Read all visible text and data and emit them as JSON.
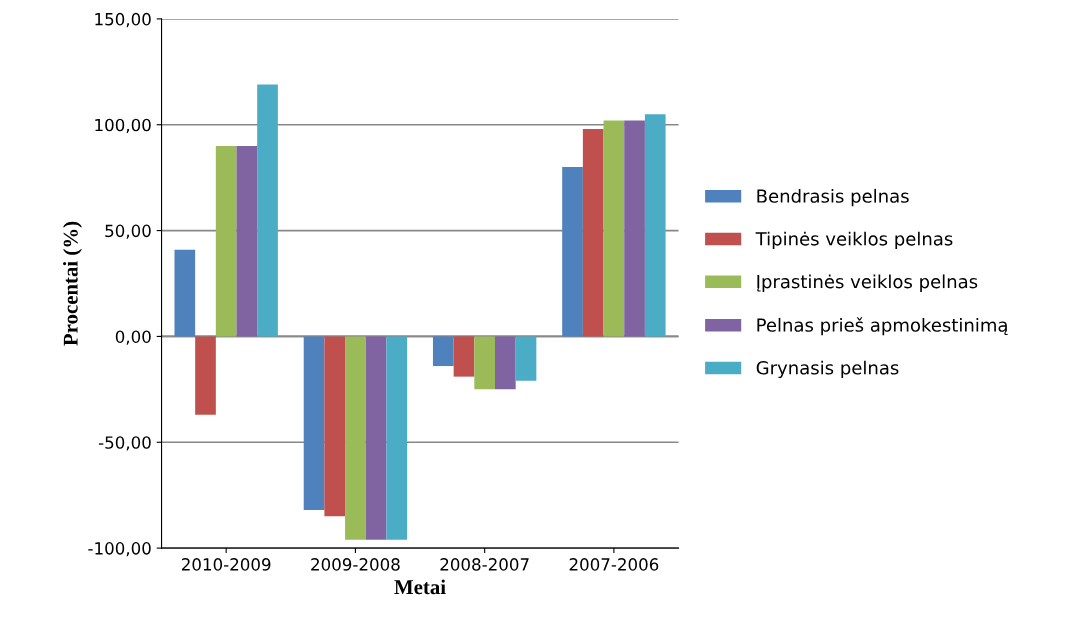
{
  "chart_data": {
    "type": "bar",
    "xlabel": "Metai",
    "ylabel": "Procentai (%)",
    "categories": [
      "2010-2009",
      "2009-2008",
      "2008-2007",
      "2007-2006"
    ],
    "series": [
      {
        "name": "Bendrasis pelnas",
        "color": "#4f81bd",
        "values": [
          41,
          -82,
          -14,
          80
        ]
      },
      {
        "name": "Tipinės veiklos pelnas",
        "color": "#c0504d",
        "values": [
          -37,
          -85,
          -19,
          98
        ]
      },
      {
        "name": "Įprastinės veiklos pelnas",
        "color": "#9bbb59",
        "values": [
          90,
          -96,
          -25,
          102
        ]
      },
      {
        "name": "Pelnas prieš apmokestinimą",
        "color": "#8064a2",
        "values": [
          90,
          -96,
          -25,
          102
        ]
      },
      {
        "name": "Grynasis pelnas",
        "color": "#4bacc6",
        "values": [
          119,
          -96,
          -21,
          105
        ]
      }
    ],
    "ylim": [
      -100,
      150
    ],
    "yticks": [
      {
        "value": -100,
        "label": "-100,00"
      },
      {
        "value": -50,
        "label": "-50,00"
      },
      {
        "value": 0,
        "label": "0,00"
      },
      {
        "value": 50,
        "label": "50,00"
      },
      {
        "value": 100,
        "label": "100,00"
      },
      {
        "value": 150,
        "label": "150,00"
      }
    ],
    "grid": "y",
    "legend": "right"
  }
}
